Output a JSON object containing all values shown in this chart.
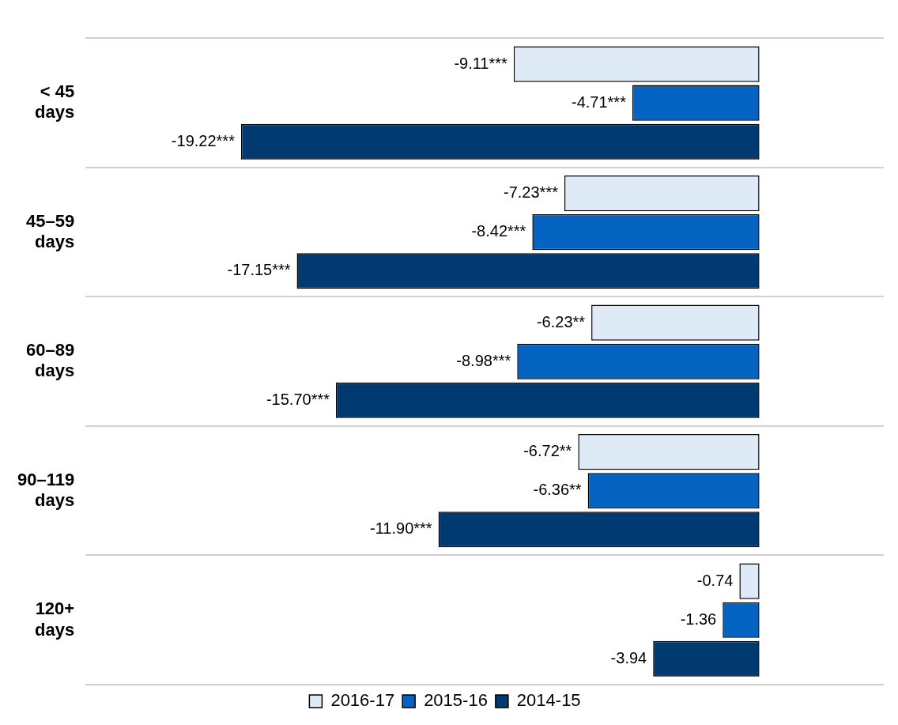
{
  "chart_data": {
    "type": "bar",
    "orientation": "horizontal",
    "categories": [
      "< 45 days",
      "45–59 days",
      "60–89 days",
      "90–119 days",
      "120+ days"
    ],
    "series": [
      {
        "name": "2016-17",
        "color": "#deebf7",
        "values": [
          -9.11,
          -7.23,
          -6.23,
          -6.72,
          -0.74
        ],
        "value_labels": [
          "-9.11***",
          "-7.23***",
          "-6.23**",
          "-6.72**",
          "-0.74"
        ]
      },
      {
        "name": "2015-16",
        "color": "#0563c1",
        "values": [
          -4.71,
          -8.42,
          -8.98,
          -6.36,
          -1.36
        ],
        "value_labels": [
          "-4.71***",
          "-8.42***",
          "-8.98***",
          "-6.36**",
          "-1.36"
        ]
      },
      {
        "name": "2014-15",
        "color": "#003a70",
        "values": [
          -19.22,
          -17.15,
          -15.7,
          -11.9,
          -3.94
        ],
        "value_labels": [
          "-19.22***",
          "-17.15***",
          "-15.70***",
          "-11.90***",
          "-3.94"
        ]
      }
    ],
    "grid": "y",
    "legend": "bottom"
  }
}
